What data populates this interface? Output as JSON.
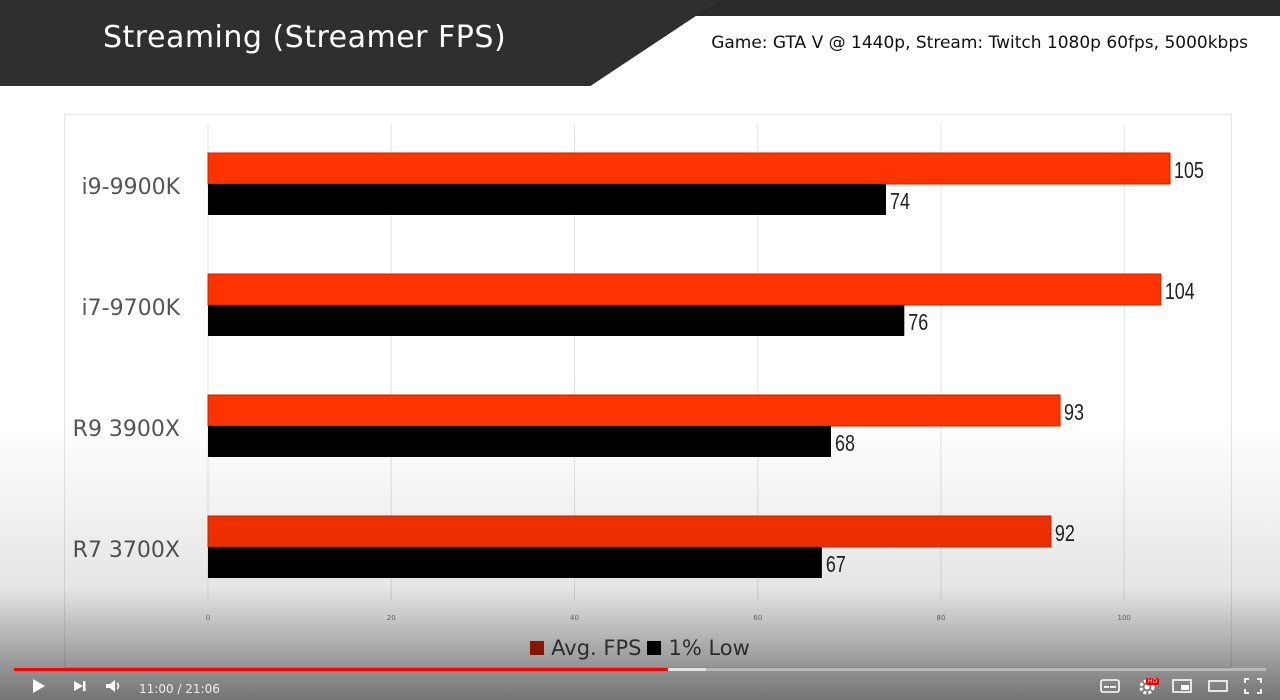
{
  "header": {
    "title": "Streaming (Streamer FPS)",
    "subtitle": "Game: GTA V @ 1440p, Stream: Twitch 1080p 60fps, 5000kbps"
  },
  "chart_data": {
    "type": "bar",
    "orientation": "horizontal",
    "title": "Streaming (Streamer FPS)",
    "subtitle": "Game: GTA V @ 1440p, Stream: Twitch 1080p 60fps, 5000kbps",
    "categories": [
      "i9-9900K",
      "i7-9700K",
      "R9 3900X",
      "R7 3700X"
    ],
    "series": [
      {
        "name": "Avg. FPS",
        "color": "#ff3300",
        "values": [
          105,
          104,
          93,
          92
        ]
      },
      {
        "name": "1% Low",
        "color": "#000000",
        "values": [
          74,
          76,
          68,
          67
        ]
      }
    ],
    "xlim": [
      0,
      110
    ],
    "xticks": [
      "0",
      "20",
      "40",
      "60",
      "80",
      "100"
    ],
    "xlabel": "",
    "ylabel": "",
    "grid": true,
    "legend_position": "bottom"
  },
  "player": {
    "time_display": "11:00 / 21:06",
    "played_fraction": 0.522,
    "buffered_fraction": 0.553,
    "hd_badge": "HD",
    "icons": [
      "play-icon",
      "next-icon",
      "volume-icon",
      "subtitles-icon",
      "settings-icon",
      "miniplayer-icon",
      "theater-icon",
      "fullscreen-icon"
    ]
  }
}
